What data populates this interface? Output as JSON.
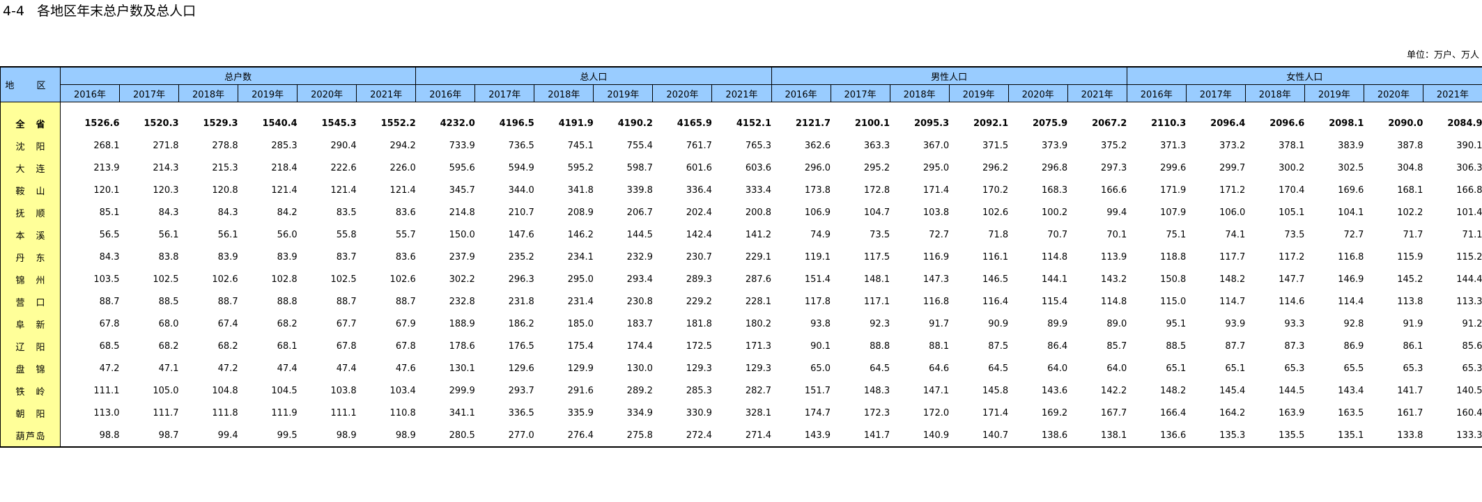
{
  "title": "4-4   各地区年末总户数及总人口",
  "unit": "单位：万户、万人",
  "table": {
    "region_header": "地 区",
    "groups": [
      "总户数",
      "总人口",
      "男性人口",
      "女性人口"
    ],
    "years": [
      "2016年",
      "2017年",
      "2018年",
      "2019年",
      "2020年",
      "2021年"
    ],
    "rows": [
      {
        "region": "全 省",
        "values": [
          "1526.6",
          "1520.3",
          "1529.3",
          "1540.4",
          "1545.3",
          "1552.2",
          "4232.0",
          "4196.5",
          "4191.9",
          "4190.2",
          "4165.9",
          "4152.1",
          "2121.7",
          "2100.1",
          "2095.3",
          "2092.1",
          "2075.9",
          "2067.2",
          "2110.3",
          "2096.4",
          "2096.6",
          "2098.1",
          "2090.0",
          "2084.9"
        ]
      },
      {
        "region": "沈 阳",
        "values": [
          "268.1",
          "271.8",
          "278.8",
          "285.3",
          "290.4",
          "294.2",
          "733.9",
          "736.5",
          "745.1",
          "755.4",
          "761.7",
          "765.3",
          "362.6",
          "363.3",
          "367.0",
          "371.5",
          "373.9",
          "375.2",
          "371.3",
          "373.2",
          "378.1",
          "383.9",
          "387.8",
          "390.1"
        ]
      },
      {
        "region": "大 连",
        "values": [
          "213.9",
          "214.3",
          "215.3",
          "218.4",
          "222.6",
          "226.0",
          "595.6",
          "594.9",
          "595.2",
          "598.7",
          "601.6",
          "603.6",
          "296.0",
          "295.2",
          "295.0",
          "296.2",
          "296.8",
          "297.3",
          "299.6",
          "299.7",
          "300.2",
          "302.5",
          "304.8",
          "306.3"
        ]
      },
      {
        "region": "鞍 山",
        "values": [
          "120.1",
          "120.3",
          "120.8",
          "121.4",
          "121.4",
          "121.4",
          "345.7",
          "344.0",
          "341.8",
          "339.8",
          "336.4",
          "333.4",
          "173.8",
          "172.8",
          "171.4",
          "170.2",
          "168.3",
          "166.6",
          "171.9",
          "171.2",
          "170.4",
          "169.6",
          "168.1",
          "166.8"
        ]
      },
      {
        "region": "抚 顺",
        "values": [
          "85.1",
          "84.3",
          "84.3",
          "84.2",
          "83.5",
          "83.6",
          "214.8",
          "210.7",
          "208.9",
          "206.7",
          "202.4",
          "200.8",
          "106.9",
          "104.7",
          "103.8",
          "102.6",
          "100.2",
          "99.4",
          "107.9",
          "106.0",
          "105.1",
          "104.1",
          "102.2",
          "101.4"
        ]
      },
      {
        "region": "本 溪",
        "values": [
          "56.5",
          "56.1",
          "56.1",
          "56.0",
          "55.8",
          "55.7",
          "150.0",
          "147.6",
          "146.2",
          "144.5",
          "142.4",
          "141.2",
          "74.9",
          "73.5",
          "72.7",
          "71.8",
          "70.7",
          "70.1",
          "75.1",
          "74.1",
          "73.5",
          "72.7",
          "71.7",
          "71.1"
        ]
      },
      {
        "region": "丹 东",
        "values": [
          "84.3",
          "83.8",
          "83.9",
          "83.9",
          "83.7",
          "83.6",
          "237.9",
          "235.2",
          "234.1",
          "232.9",
          "230.7",
          "229.1",
          "119.1",
          "117.5",
          "116.9",
          "116.1",
          "114.8",
          "113.9",
          "118.8",
          "117.7",
          "117.2",
          "116.8",
          "115.9",
          "115.2"
        ]
      },
      {
        "region": "锦 州",
        "values": [
          "103.5",
          "102.5",
          "102.6",
          "102.8",
          "102.5",
          "102.6",
          "302.2",
          "296.3",
          "295.0",
          "293.4",
          "289.3",
          "287.6",
          "151.4",
          "148.1",
          "147.3",
          "146.5",
          "144.1",
          "143.2",
          "150.8",
          "148.2",
          "147.7",
          "146.9",
          "145.2",
          "144.4"
        ]
      },
      {
        "region": "营 口",
        "values": [
          "88.7",
          "88.5",
          "88.7",
          "88.8",
          "88.7",
          "88.7",
          "232.8",
          "231.8",
          "231.4",
          "230.8",
          "229.2",
          "228.1",
          "117.8",
          "117.1",
          "116.8",
          "116.4",
          "115.4",
          "114.8",
          "115.0",
          "114.7",
          "114.6",
          "114.4",
          "113.8",
          "113.3"
        ]
      },
      {
        "region": "阜 新",
        "values": [
          "67.8",
          "68.0",
          "67.4",
          "68.2",
          "67.7",
          "67.9",
          "188.9",
          "186.2",
          "185.0",
          "183.7",
          "181.8",
          "180.2",
          "93.8",
          "92.3",
          "91.7",
          "90.9",
          "89.9",
          "89.0",
          "95.1",
          "93.9",
          "93.3",
          "92.8",
          "91.9",
          "91.2"
        ]
      },
      {
        "region": "辽 阳",
        "values": [
          "68.5",
          "68.2",
          "68.2",
          "68.1",
          "67.8",
          "67.8",
          "178.6",
          "176.5",
          "175.4",
          "174.4",
          "172.5",
          "171.3",
          "90.1",
          "88.8",
          "88.1",
          "87.5",
          "86.4",
          "85.7",
          "88.5",
          "87.7",
          "87.3",
          "86.9",
          "86.1",
          "85.6"
        ]
      },
      {
        "region": "盘 锦",
        "values": [
          "47.2",
          "47.1",
          "47.2",
          "47.4",
          "47.4",
          "47.6",
          "130.1",
          "129.6",
          "129.9",
          "130.0",
          "129.3",
          "129.3",
          "65.0",
          "64.5",
          "64.6",
          "64.5",
          "64.0",
          "64.0",
          "65.1",
          "65.1",
          "65.3",
          "65.5",
          "65.3",
          "65.3"
        ]
      },
      {
        "region": "铁 岭",
        "values": [
          "111.1",
          "105.0",
          "104.8",
          "104.5",
          "103.8",
          "103.4",
          "299.9",
          "293.7",
          "291.6",
          "289.2",
          "285.3",
          "282.7",
          "151.7",
          "148.3",
          "147.1",
          "145.8",
          "143.6",
          "142.2",
          "148.2",
          "145.4",
          "144.5",
          "143.4",
          "141.7",
          "140.5"
        ]
      },
      {
        "region": "朝 阳",
        "values": [
          "113.0",
          "111.7",
          "111.8",
          "111.9",
          "111.1",
          "110.8",
          "341.1",
          "336.5",
          "335.9",
          "334.9",
          "330.9",
          "328.1",
          "174.7",
          "172.3",
          "172.0",
          "171.4",
          "169.2",
          "167.7",
          "166.4",
          "164.2",
          "163.9",
          "163.5",
          "161.7",
          "160.4"
        ]
      },
      {
        "region": "葫芦岛",
        "values": [
          "98.8",
          "98.7",
          "99.4",
          "99.5",
          "98.9",
          "98.9",
          "280.5",
          "277.0",
          "276.4",
          "275.8",
          "272.4",
          "271.4",
          "143.9",
          "141.7",
          "140.9",
          "140.7",
          "138.6",
          "138.1",
          "136.6",
          "135.3",
          "135.5",
          "135.1",
          "133.8",
          "133.3"
        ]
      }
    ]
  }
}
